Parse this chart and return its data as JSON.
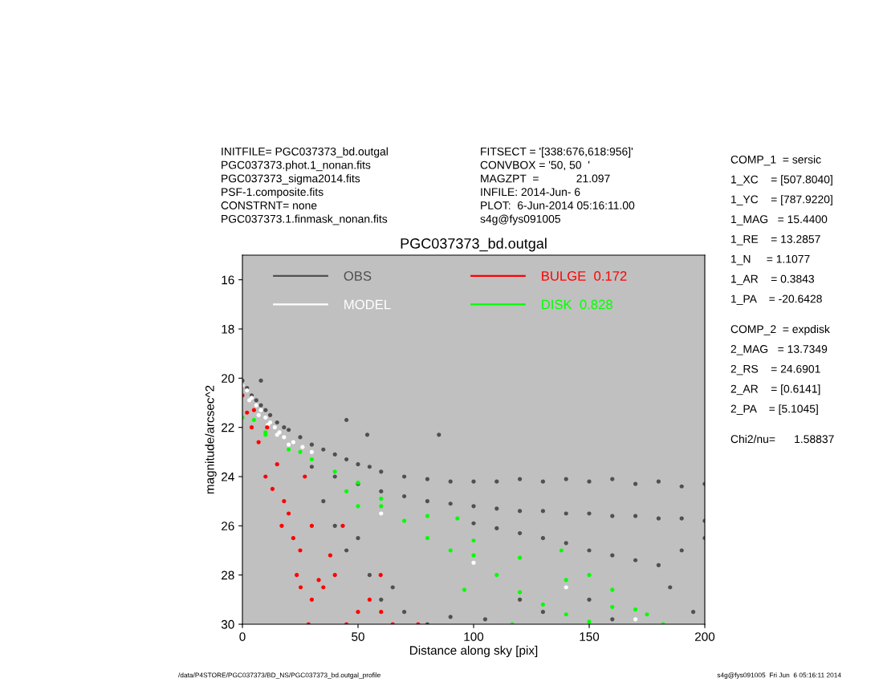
{
  "chart_data": {
    "type": "scatter",
    "title": "PGC037373_bd.outgal",
    "xlabel": "Distance along sky [pix]",
    "ylabel": "magnitude/arcsec^2",
    "xlim": [
      0,
      200
    ],
    "ylim": [
      30,
      15
    ],
    "xticks": [
      0,
      50,
      100,
      150,
      200
    ],
    "yticks": [
      16,
      18,
      20,
      22,
      24,
      26,
      28,
      30
    ],
    "grid": false,
    "legend": "top",
    "marker": "circle",
    "series": [
      {
        "name": "OBS",
        "color": "#505050",
        "x": [
          0,
          2,
          4,
          6,
          8,
          10,
          12,
          15,
          18,
          20,
          25,
          30,
          35,
          40,
          45,
          50,
          55,
          60,
          70,
          80,
          90,
          100,
          110,
          120,
          130,
          140,
          150,
          160,
          170,
          180,
          190,
          200,
          30,
          40,
          50,
          60,
          70,
          80,
          90,
          100,
          110,
          120,
          130,
          140,
          150,
          160,
          170,
          180,
          190,
          200,
          100,
          110,
          120,
          130,
          140,
          150,
          160,
          170,
          180,
          190,
          200,
          8,
          45,
          54,
          85,
          35,
          40,
          45,
          50,
          55,
          60,
          65,
          70,
          80,
          90,
          105,
          120,
          130,
          150,
          160,
          185,
          195
        ],
        "values": [
          20.1,
          20.4,
          20.7,
          20.9,
          21.1,
          21.3,
          21.5,
          21.8,
          22.0,
          22.1,
          22.4,
          22.7,
          22.9,
          23.1,
          23.3,
          23.5,
          23.6,
          23.8,
          24.0,
          24.1,
          24.2,
          24.2,
          24.2,
          24.1,
          24.2,
          24.1,
          24.2,
          24.1,
          24.3,
          24.2,
          24.4,
          24.3,
          23.6,
          24.0,
          24.3,
          24.6,
          24.8,
          25.0,
          25.1,
          25.2,
          25.3,
          25.4,
          25.4,
          25.5,
          25.5,
          25.6,
          25.6,
          25.7,
          25.7,
          25.8,
          25.9,
          26.1,
          26.3,
          26.5,
          26.7,
          27.0,
          27.2,
          27.4,
          27.6,
          27.0,
          26.5,
          20.1,
          21.7,
          22.3,
          22.3,
          25.0,
          26.0,
          27.0,
          26.5,
          28.0,
          29.0,
          28.5,
          29.5,
          30.0,
          29.7,
          29.8,
          29.0,
          29.5,
          29.0,
          29.8,
          28.5,
          29.5
        ]
      },
      {
        "name": "MODEL",
        "color": "#ffffff",
        "x": [
          0,
          2,
          3,
          4,
          6,
          7,
          8,
          10,
          11,
          12,
          14,
          15,
          16,
          18,
          20,
          22,
          26,
          30,
          60,
          100,
          140,
          170
        ],
        "values": [
          20.3,
          20.5,
          20.9,
          20.8,
          21.1,
          21.5,
          21.3,
          21.6,
          21.9,
          21.8,
          22.0,
          22.3,
          22.2,
          22.4,
          22.7,
          22.6,
          22.8,
          23.0,
          25.5,
          27.5,
          28.5,
          29.8
        ]
      },
      {
        "name": "BULGE  0.172",
        "color": "#ff0000",
        "x": [
          0,
          2,
          4,
          10,
          17,
          23.5,
          25.2,
          28.6,
          5,
          10.7,
          27,
          43.4,
          59.8,
          76,
          7,
          13,
          18,
          30,
          25,
          40,
          35,
          50,
          30,
          45,
          20,
          38,
          55,
          60,
          65,
          15,
          22,
          33
        ],
        "values": [
          20.7,
          21.4,
          22.0,
          24.0,
          26.0,
          28.0,
          28.5,
          30.0,
          21.3,
          22.0,
          24.0,
          26.0,
          28.0,
          30.0,
          22.6,
          24.5,
          25.0,
          26.0,
          27.0,
          28.0,
          28.5,
          29.5,
          29.0,
          30.0,
          25.5,
          27.2,
          29.0,
          29.5,
          30.0,
          23.5,
          26.5,
          28.2
        ]
      },
      {
        "name": "DISK  0.828",
        "color": "#00ff00",
        "x": [
          0,
          5,
          10,
          30,
          50,
          96,
          116.7,
          10,
          50,
          93,
          138,
          175,
          182,
          20,
          40,
          60,
          70,
          80,
          100,
          110,
          120,
          130,
          140,
          150,
          160,
          170,
          60,
          80,
          100,
          120,
          140,
          160,
          25,
          45,
          90,
          150
        ],
        "values": [
          21.6,
          21.7,
          22.3,
          23.3,
          25.2,
          28.6,
          30.0,
          22.2,
          24.25,
          25.7,
          27.0,
          29.6,
          30.0,
          22.9,
          23.8,
          25.2,
          25.8,
          26.5,
          27.2,
          28.0,
          28.7,
          29.2,
          29.6,
          29.9,
          29.3,
          29.4,
          24.9,
          25.6,
          26.6,
          27.3,
          28.2,
          28.6,
          23.0,
          24.6,
          27.0,
          28.0
        ]
      }
    ],
    "annotations": [
      "INITFILE= PGC037373_bd.outgal",
      "PGC037373.phot.1_nonan.fits",
      "PGC037373_sigma2014.fits",
      "PSF-1.composite.fits",
      "CONSTRNT= none",
      "PGC037373.1.finmask_nonan.fits",
      "FITSECT = '[338:676,618:956]'",
      "CONVBOX = '50, 50  '",
      "MAGZPT  =            21.097",
      "INFILE: 2014-Jun- 6",
      "PLOT:  6-Jun-2014 05:16:11.00",
      "s4g@fys091005",
      "COMP_1  = sersic",
      "1_XC    = [507.8040]",
      "1_YC    = [787.9220]",
      "1_MAG   = 15.4400",
      "1_RE    = 13.2857",
      "1_N     = 1.1077",
      "1_AR    = 0.3843",
      "1_PA    = -20.6428",
      "COMP_2  = expdisk",
      "2_MAG   = 13.7349",
      "2_RS    = 24.6901",
      "2_AR    = [0.6141]",
      "2_PA    = [5.1045]",
      "Chi2/nu=      1.58837",
      "/data/P4STORE/PGC037373/BD_NS/PGC037373_bd.outgal_profile",
      "s4g@fys091005  Fri Jun  6 05:16:11 2014"
    ]
  }
}
